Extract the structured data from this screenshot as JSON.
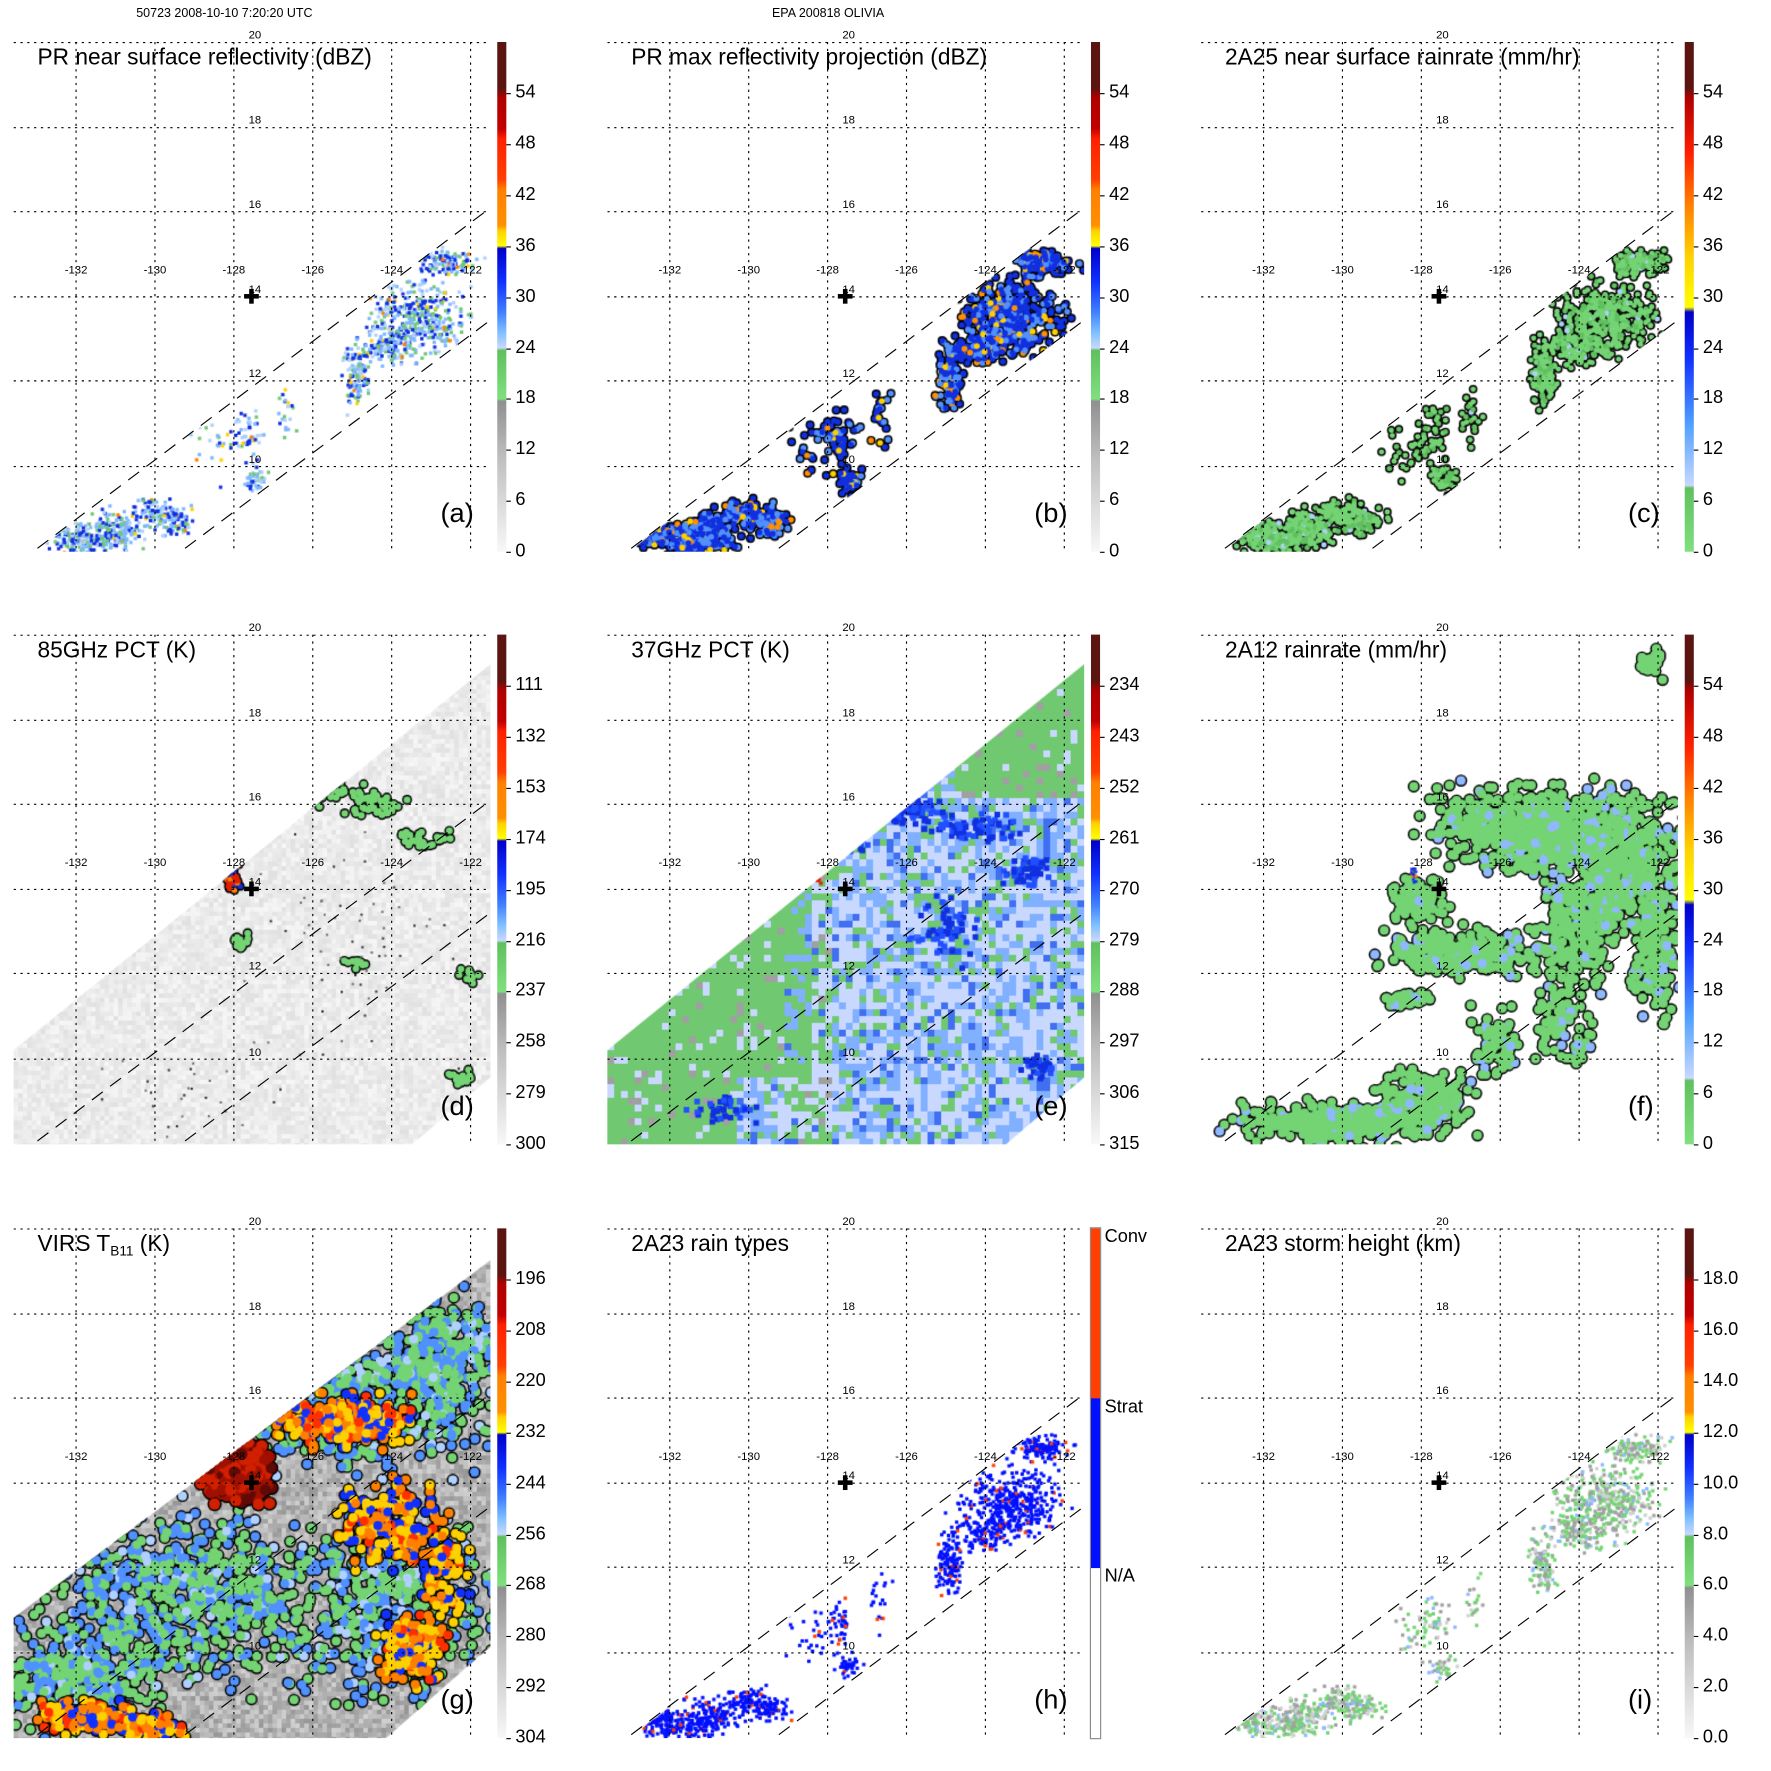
{
  "header": {
    "left": "50723 2008-10-10 7:20:20 UTC",
    "center": "EPA 200818 OLIVIA"
  },
  "grid": {
    "lon_labels": [
      "-132",
      "-130",
      "-128",
      "-126",
      "-124",
      "-122"
    ],
    "lat_labels": [
      "20",
      "18",
      "16",
      "14",
      "12",
      "10"
    ]
  },
  "panels": [
    {
      "title": "PR near surface reflectivity (dBZ)",
      "label": "(a)",
      "colorbar": [
        "54",
        "48",
        "42",
        "36",
        "30",
        "24",
        "18",
        "12",
        "6",
        "0"
      ]
    },
    {
      "title": "PR max reflectivity projection (dBZ)",
      "label": "(b)",
      "colorbar": [
        "54",
        "48",
        "42",
        "36",
        "30",
        "24",
        "18",
        "12",
        "6",
        "0"
      ]
    },
    {
      "title": "2A25 near surface rainrate (mm/hr)",
      "label": "(c)",
      "colorbar": [
        "54",
        "48",
        "42",
        "36",
        "30",
        "24",
        "18",
        "12",
        "6",
        "0"
      ]
    },
    {
      "title": "85GHz PCT (K)",
      "label": "(d)",
      "colorbar": [
        "111",
        "132",
        "153",
        "174",
        "195",
        "216",
        "237",
        "258",
        "279",
        "300"
      ]
    },
    {
      "title": "37GHz PCT (K)",
      "label": "(e)",
      "colorbar": [
        "234",
        "243",
        "252",
        "261",
        "270",
        "279",
        "288",
        "297",
        "306",
        "315"
      ]
    },
    {
      "title": "2A12 rainrate (mm/hr)",
      "label": "(f)",
      "colorbar": [
        "54",
        "48",
        "42",
        "36",
        "30",
        "24",
        "18",
        "12",
        "6",
        "0"
      ]
    },
    {
      "title": "VIRS T",
      "title_sub": "B11",
      "title_suffix": " (K)",
      "label": "(g)",
      "colorbar": [
        "196",
        "208",
        "220",
        "232",
        "244",
        "256",
        "268",
        "280",
        "292",
        "304"
      ]
    },
    {
      "title": "2A23 rain types",
      "label": "(h)",
      "colorbar": [
        "Conv",
        "Strat",
        "N/A"
      ]
    },
    {
      "title": "2A23 storm height (km)",
      "label": "(i)",
      "colorbar": [
        "18.0",
        "16.0",
        "14.0",
        "12.0",
        "10.0",
        "8.0",
        "6.0",
        "4.0",
        "2.0",
        "0.0"
      ]
    }
  ],
  "colors": {
    "convective": "#ff4000",
    "stratiform": "#0010ff",
    "rain_green": "#74d474",
    "deep_blue": "#1030e0"
  }
}
